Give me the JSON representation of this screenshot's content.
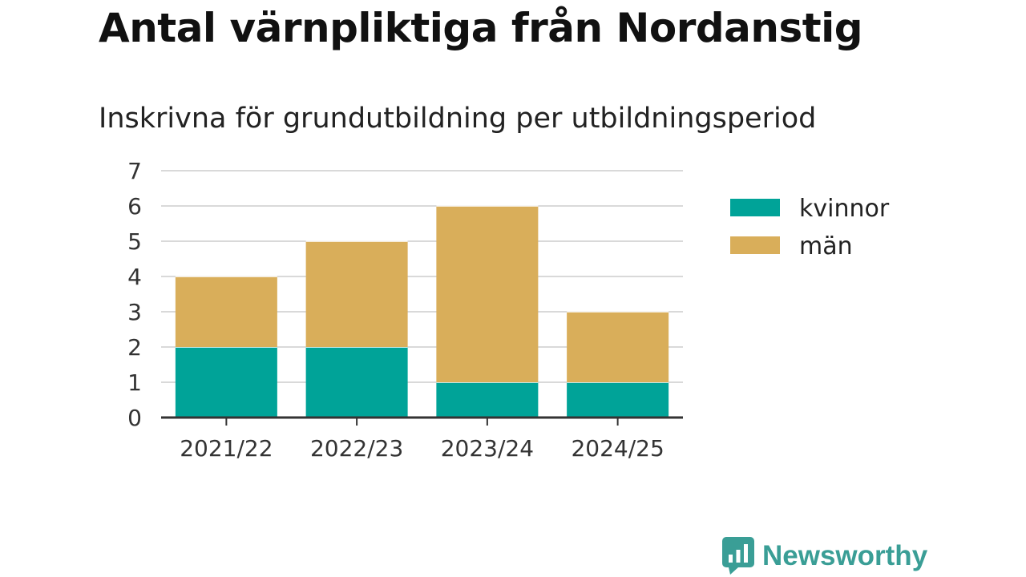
{
  "title": "Antal värnpliktiga från Nordanstig",
  "subtitle": "Inskrivna för grundutbildning per utbildningsperiod",
  "brand": {
    "name": "Newsworthy",
    "icon": "newsworthy-logo-icon",
    "color": "#3a9e96"
  },
  "chart_data": {
    "type": "bar",
    "stacked": true,
    "categories": [
      "2021/22",
      "2022/23",
      "2023/24",
      "2024/25"
    ],
    "series": [
      {
        "name": "kvinnor",
        "color": "#00a398",
        "values": [
          2,
          2,
          1,
          1
        ]
      },
      {
        "name": "män",
        "color": "#d9ae5a",
        "values": [
          2,
          3,
          5,
          2
        ]
      }
    ],
    "title": "Antal värnpliktiga från Nordanstig",
    "subtitle": "Inskrivna för grundutbildning per utbildningsperiod",
    "xlabel": "",
    "ylabel": "",
    "ylim": [
      0,
      7
    ],
    "yticks": [
      "0",
      "1",
      "2",
      "3",
      "4",
      "5",
      "6",
      "7"
    ],
    "grid": true,
    "legend": "right"
  }
}
